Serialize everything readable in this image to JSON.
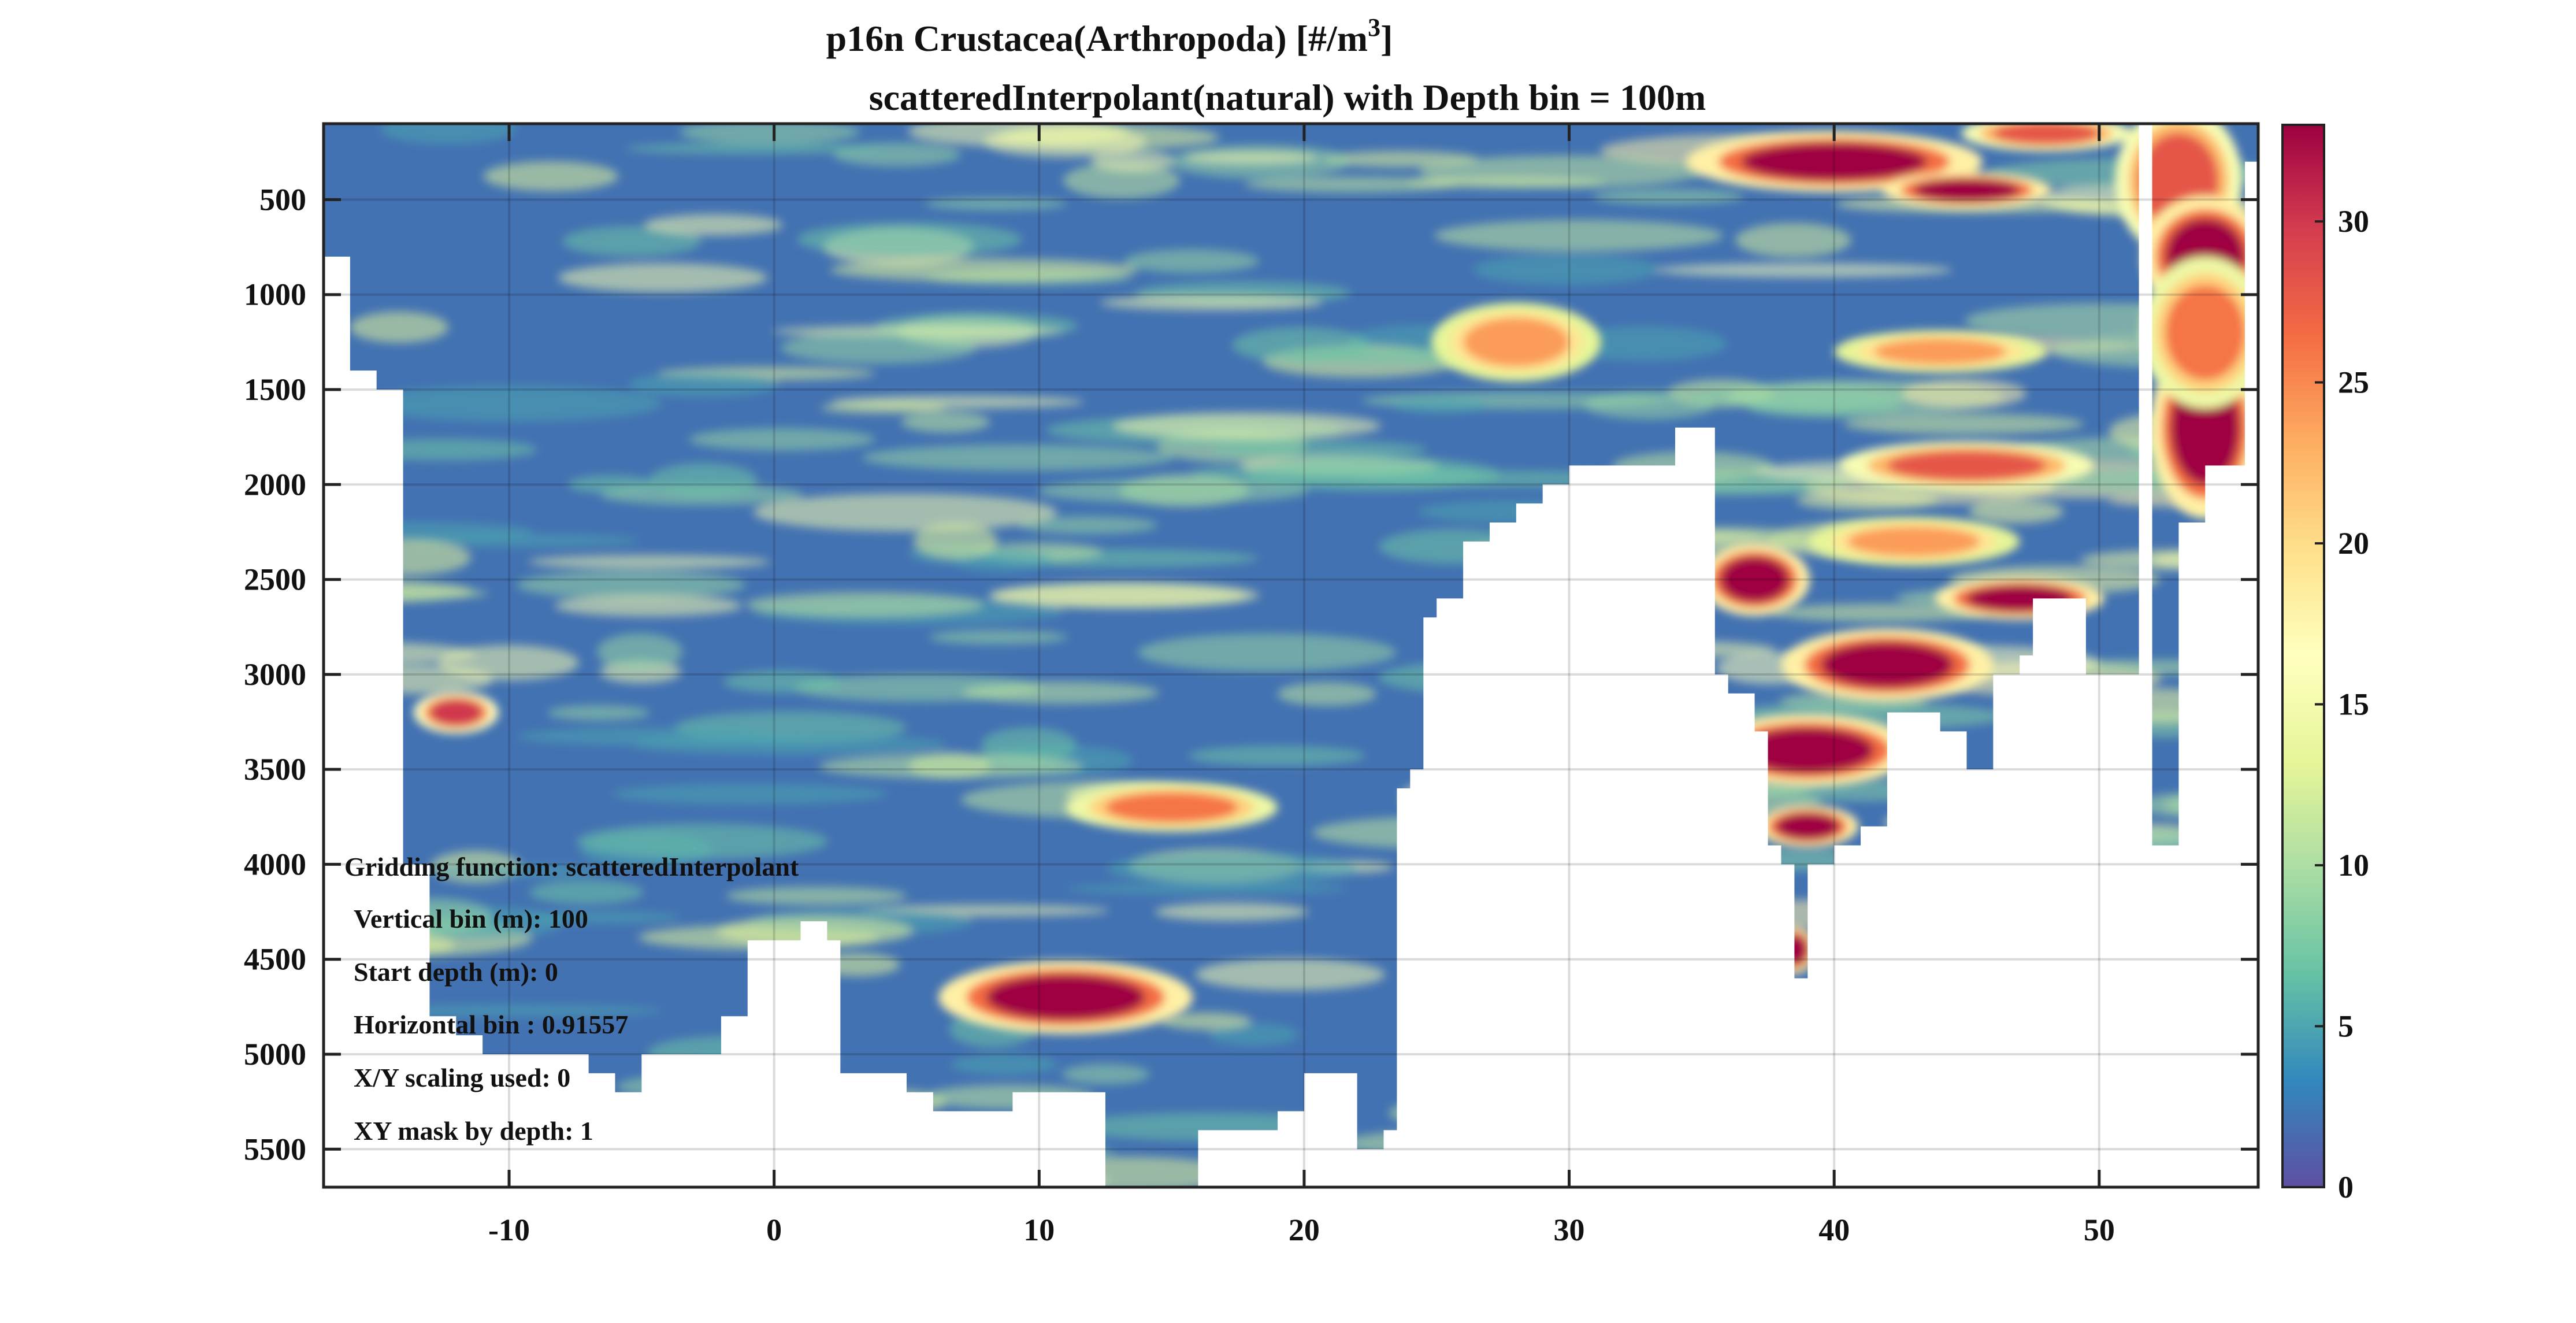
{
  "chart_data": {
    "type": "heatmap",
    "title": "p16n Crustacea(Arthropoda) [#/m",
    "title_superscript": "3",
    "title_suffix": "]",
    "subtitle": "scatteredInterpolant(natural)  with Depth bin = 100m",
    "xlabel": "",
    "ylabel": "",
    "xlim": [
      -17,
      56
    ],
    "ylim": [
      5700,
      100
    ],
    "y_reversed": true,
    "x_ticks": [
      -10,
      0,
      10,
      20,
      30,
      40,
      50
    ],
    "y_ticks": [
      500,
      1000,
      1500,
      2000,
      2500,
      3000,
      3500,
      4000,
      4500,
      5000,
      5500
    ],
    "grid": true,
    "colorbar": {
      "min": 0,
      "max": 33,
      "ticks": [
        0,
        5,
        10,
        15,
        20,
        25,
        30
      ],
      "colormap": "spectral",
      "colors": [
        "#5e4fa2",
        "#3288bd",
        "#66c2a5",
        "#abdda4",
        "#e6f598",
        "#ffffbf",
        "#fee08b",
        "#fdae61",
        "#f46d43",
        "#d53e4f",
        "#9e0142"
      ]
    },
    "background_value": 2,
    "bottom_depth": [
      [
        -17,
        800
      ],
      [
        -16,
        1400
      ],
      [
        -15,
        1500
      ],
      [
        -14,
        4000
      ],
      [
        -13,
        4800
      ],
      [
        -12,
        4900
      ],
      [
        -11,
        5000
      ],
      [
        -10,
        5000
      ],
      [
        -9,
        5000
      ],
      [
        -8,
        5000
      ],
      [
        -7,
        5100
      ],
      [
        -6,
        5200
      ],
      [
        -5,
        5000
      ],
      [
        -4,
        5000
      ],
      [
        -3,
        5000
      ],
      [
        -2,
        4800
      ],
      [
        -1,
        4400
      ],
      [
        0,
        4400
      ],
      [
        1,
        4300
      ],
      [
        2,
        4400
      ],
      [
        2.5,
        5100
      ],
      [
        4,
        5100
      ],
      [
        5,
        5200
      ],
      [
        6,
        5300
      ],
      [
        7,
        5300
      ],
      [
        8,
        5300
      ],
      [
        9,
        5200
      ],
      [
        12,
        5200
      ],
      [
        12.5,
        5700
      ],
      [
        15,
        5700
      ],
      [
        16,
        5400
      ],
      [
        18,
        5400
      ],
      [
        19,
        5300
      ],
      [
        20,
        5100
      ],
      [
        21,
        5100
      ],
      [
        22,
        5500
      ],
      [
        23,
        5400
      ],
      [
        23.5,
        3600
      ],
      [
        24,
        3500
      ],
      [
        24.5,
        2700
      ],
      [
        25,
        2600
      ],
      [
        26,
        2300
      ],
      [
        27,
        2200
      ],
      [
        28,
        2100
      ],
      [
        29,
        2000
      ],
      [
        30,
        1900
      ],
      [
        31,
        1900
      ],
      [
        32,
        1900
      ],
      [
        33,
        1900
      ],
      [
        34,
        1700
      ],
      [
        35,
        1700
      ],
      [
        35.5,
        3000
      ],
      [
        36,
        3100
      ],
      [
        37,
        3300
      ],
      [
        37.5,
        3900
      ],
      [
        38,
        4000
      ],
      [
        38.5,
        4600
      ],
      [
        39,
        4000
      ],
      [
        40,
        3900
      ],
      [
        41,
        3800
      ],
      [
        42,
        3200
      ],
      [
        43,
        3200
      ],
      [
        44,
        3300
      ],
      [
        45,
        3500
      ],
      [
        46,
        3000
      ],
      [
        47,
        2900
      ],
      [
        47.5,
        2600
      ],
      [
        49,
        2600
      ],
      [
        49.5,
        3000
      ],
      [
        51,
        3000
      ],
      [
        51.5,
        100
      ],
      [
        52,
        3900
      ],
      [
        53,
        2200
      ],
      [
        54,
        1900
      ],
      [
        55,
        1900
      ],
      [
        55.5,
        300
      ],
      [
        56,
        300
      ]
    ],
    "hotspots": [
      {
        "x": -12,
        "y": 3200,
        "rx": 1.0,
        "ry": 70,
        "v": 30
      },
      {
        "x": 11,
        "y": 4700,
        "rx": 3.0,
        "ry": 120,
        "v": 33
      },
      {
        "x": 15,
        "y": 3700,
        "rx": 2.5,
        "ry": 80,
        "v": 26
      },
      {
        "x": 28,
        "y": 1250,
        "rx": 2.0,
        "ry": 130,
        "v": 24
      },
      {
        "x": 40,
        "y": 300,
        "rx": 3.5,
        "ry": 100,
        "v": 33
      },
      {
        "x": 45,
        "y": 450,
        "rx": 2.0,
        "ry": 60,
        "v": 33
      },
      {
        "x": 48,
        "y": 150,
        "rx": 2.0,
        "ry": 60,
        "v": 28
      },
      {
        "x": 44,
        "y": 1300,
        "rx": 2.5,
        "ry": 70,
        "v": 24
      },
      {
        "x": 45,
        "y": 1900,
        "rx": 3.0,
        "ry": 80,
        "v": 28
      },
      {
        "x": 43,
        "y": 2300,
        "rx": 2.5,
        "ry": 80,
        "v": 24
      },
      {
        "x": 47,
        "y": 2600,
        "rx": 2.0,
        "ry": 70,
        "v": 33
      },
      {
        "x": 37,
        "y": 2500,
        "rx": 1.3,
        "ry": 120,
        "v": 33
      },
      {
        "x": 42,
        "y": 2950,
        "rx": 2.5,
        "ry": 120,
        "v": 33
      },
      {
        "x": 39,
        "y": 3400,
        "rx": 2.5,
        "ry": 120,
        "v": 33
      },
      {
        "x": 39,
        "y": 3800,
        "rx": 1.2,
        "ry": 70,
        "v": 33
      },
      {
        "x": 38.5,
        "y": 4450,
        "rx": 0.5,
        "ry": 80,
        "v": 33
      },
      {
        "x": 53,
        "y": 400,
        "rx": 1.5,
        "ry": 250,
        "v": 28
      },
      {
        "x": 54,
        "y": 800,
        "rx": 1.5,
        "ry": 200,
        "v": 33
      },
      {
        "x": 54,
        "y": 1700,
        "rx": 1.3,
        "ry": 300,
        "v": 33
      },
      {
        "x": 54,
        "y": 1200,
        "rx": 1.5,
        "ry": 250,
        "v": 26
      }
    ],
    "info_lines": [
      "Gridding function: scatteredInterpolant",
      "Vertical bin (m): 100",
      "Start depth  (m): 0",
      "Horizontal bin  : 0.91557",
      "X/Y scaling used: 0",
      "XY mask by depth: 1"
    ]
  }
}
